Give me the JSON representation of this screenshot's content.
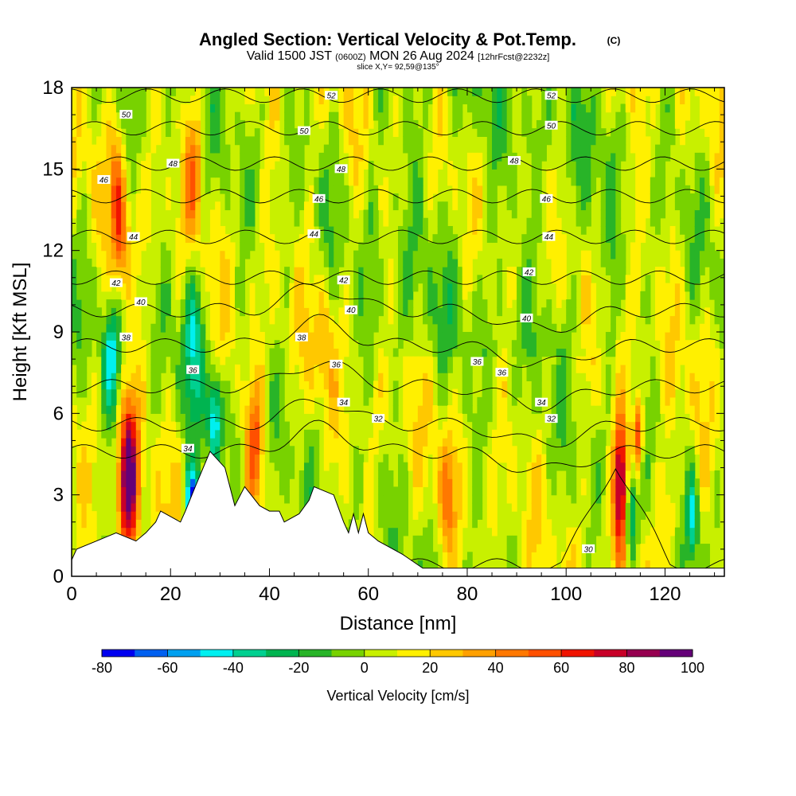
{
  "chart_data": {
    "type": "heatmap",
    "title": {
      "main": "Angled Section: Vertical Velocity & Pot.Temp.",
      "main_suffix": "(C)",
      "line2_a": "Valid 1500 JST",
      "line2_b": "(0600Z)",
      "line2_c": "MON 26 Aug 2024",
      "line2_d": "[12hrFcst@2232z]",
      "line3": "slice X,Y= 92,59@135°"
    },
    "xlabel": "Distance [nm]",
    "ylabel": "Height [Kft MSL]",
    "xlim": [
      0,
      132
    ],
    "ylim": [
      0,
      18
    ],
    "xticks": [
      0,
      20,
      40,
      60,
      80,
      100,
      120
    ],
    "yticks": [
      0,
      3,
      6,
      9,
      12,
      15,
      18
    ],
    "grid": false,
    "colorbar": {
      "title": "Vertical Velocity [cm/s]",
      "range": [
        -80,
        100
      ],
      "tick_values": [
        -80,
        -60,
        -40,
        -20,
        0,
        20,
        40,
        60,
        80,
        100
      ],
      "colors": [
        "#0000f0",
        "#0060f0",
        "#00a0f0",
        "#00f0f0",
        "#00d090",
        "#00b450",
        "#28b428",
        "#78d200",
        "#c8f000",
        "#fff000",
        "#ffc800",
        "#ffa000",
        "#ff7800",
        "#ff5000",
        "#f01400",
        "#c80028",
        "#960050",
        "#640078"
      ]
    },
    "theta_contours": [
      {
        "theta": 30,
        "labels": [
          [
            104.5,
            1.0
          ]
        ]
      },
      {
        "theta": 32,
        "labels": [
          [
            62,
            5.8
          ],
          [
            97,
            5.8
          ]
        ]
      },
      {
        "theta": 34,
        "labels": [
          [
            23.5,
            4.7
          ],
          [
            55,
            6.4
          ],
          [
            95,
            6.4
          ]
        ]
      },
      {
        "theta": 36,
        "labels": [
          [
            24.5,
            7.6
          ],
          [
            53.5,
            7.8
          ],
          [
            82,
            7.9
          ],
          [
            87,
            7.5
          ]
        ]
      },
      {
        "theta": 38,
        "labels": [
          [
            11,
            8.8
          ],
          [
            46.5,
            8.8
          ]
        ]
      },
      {
        "theta": 40,
        "labels": [
          [
            14,
            10.1
          ],
          [
            56.5,
            9.8
          ],
          [
            92,
            9.5
          ]
        ]
      },
      {
        "theta": 42,
        "labels": [
          [
            9,
            10.8
          ],
          [
            55,
            10.9
          ],
          [
            92.5,
            11.2
          ]
        ]
      },
      {
        "theta": 44,
        "labels": [
          [
            12.5,
            12.5
          ],
          [
            49,
            12.6
          ],
          [
            96.5,
            12.5
          ]
        ]
      },
      {
        "theta": 46,
        "labels": [
          [
            6.5,
            14.6
          ],
          [
            50,
            13.9
          ],
          [
            96,
            13.9
          ]
        ]
      },
      {
        "theta": 48,
        "labels": [
          [
            20.5,
            15.2
          ],
          [
            54.5,
            15.0
          ],
          [
            89.5,
            15.3
          ]
        ]
      },
      {
        "theta": 50,
        "labels": [
          [
            11,
            17.0
          ],
          [
            47,
            16.4
          ],
          [
            97,
            16.6
          ]
        ]
      },
      {
        "theta": 52,
        "labels": [
          [
            52.5,
            17.7
          ],
          [
            97,
            17.7
          ]
        ]
      }
    ],
    "terrain_kft": [
      [
        0,
        0.6
      ],
      [
        1,
        1.0
      ],
      [
        5,
        1.3
      ],
      [
        9,
        1.6
      ],
      [
        13,
        1.3
      ],
      [
        15,
        1.6
      ],
      [
        17,
        2.0
      ],
      [
        18,
        2.4
      ],
      [
        22,
        2.0
      ],
      [
        23,
        2.4
      ],
      [
        25,
        3.3
      ],
      [
        28,
        4.6
      ],
      [
        31,
        4.0
      ],
      [
        33,
        2.6
      ],
      [
        35,
        3.3
      ],
      [
        38,
        2.6
      ],
      [
        40,
        2.4
      ],
      [
        42,
        2.4
      ],
      [
        43,
        2.0
      ],
      [
        46,
        2.3
      ],
      [
        48,
        2.8
      ],
      [
        49,
        3.3
      ],
      [
        53,
        3.0
      ],
      [
        55,
        2.0
      ],
      [
        56,
        1.6
      ],
      [
        57,
        2.3
      ],
      [
        58,
        1.6
      ],
      [
        59,
        2.3
      ],
      [
        60,
        1.6
      ],
      [
        62,
        1.3
      ],
      [
        67,
        0.8
      ],
      [
        71,
        0.3
      ],
      [
        132,
        0.3
      ]
    ],
    "velocity_features": [
      {
        "x": 11.5,
        "z": 3.6,
        "sx": 1.4,
        "sz": 2.0,
        "w": 95
      },
      {
        "x": 10.0,
        "z": 12.5,
        "sx": 1.2,
        "sz": 1.6,
        "w": 40
      },
      {
        "x": 9.0,
        "z": 14.5,
        "sx": 1.0,
        "sz": 1.6,
        "w": 25
      },
      {
        "x": 24.5,
        "z": 15.0,
        "sx": 1.2,
        "sz": 1.7,
        "w": 35
      },
      {
        "x": 24.5,
        "z": 9.0,
        "sx": 1.5,
        "sz": 2.0,
        "w": -40
      },
      {
        "x": 24.5,
        "z": 2.8,
        "sx": 1.0,
        "sz": 0.8,
        "w": -80
      },
      {
        "x": 29.0,
        "z": 5.8,
        "sx": 1.0,
        "sz": 1.2,
        "w": -55
      },
      {
        "x": 37.0,
        "z": 5.0,
        "sx": 1.2,
        "sz": 1.6,
        "w": 45
      },
      {
        "x": 51.0,
        "z": 8.6,
        "sx": 1.2,
        "sz": 1.5,
        "w": 20
      },
      {
        "x": 111.0,
        "z": 3.4,
        "sx": 1.0,
        "sz": 1.8,
        "w": 80
      },
      {
        "x": 114.5,
        "z": 5.2,
        "sx": 0.7,
        "sz": 1.0,
        "w": 60
      },
      {
        "x": 113.0,
        "z": 2.4,
        "sx": 0.8,
        "sz": 1.2,
        "w": -45
      },
      {
        "x": 125.5,
        "z": 2.2,
        "sx": 0.8,
        "sz": 1.2,
        "w": -45
      },
      {
        "x": 8.0,
        "z": 8.0,
        "sx": 1.2,
        "sz": 1.4,
        "w": -45
      },
      {
        "x": 76.0,
        "z": 3.0,
        "sx": 1.2,
        "sz": 1.5,
        "w": 30
      },
      {
        "x": 121.0,
        "z": 2.5,
        "sx": 1.5,
        "sz": 1.5,
        "w": 25
      }
    ]
  }
}
